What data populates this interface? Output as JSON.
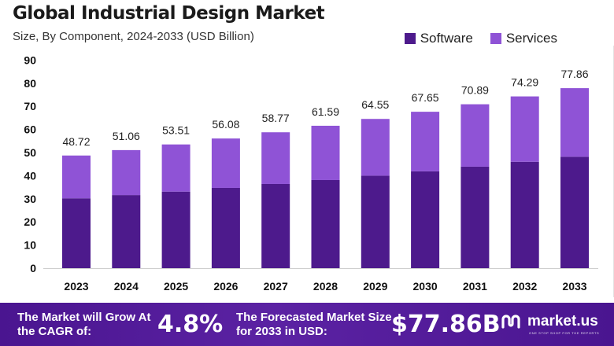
{
  "header": {
    "title": "Global Industrial Design Market",
    "subtitle": "Size, By Component, 2024-2033 (USD Billion)"
  },
  "legend": [
    {
      "label": "Software",
      "color": "#4d1a8c"
    },
    {
      "label": "Services",
      "color": "#8f53d6"
    }
  ],
  "chart_data": {
    "type": "bar",
    "stacked": true,
    "categories": [
      "2023",
      "2024",
      "2025",
      "2026",
      "2027",
      "2028",
      "2029",
      "2030",
      "2031",
      "2032",
      "2033"
    ],
    "series": [
      {
        "name": "Software",
        "color": "#4d1a8c",
        "values": [
          30.2,
          31.6,
          33.1,
          34.7,
          36.4,
          38.1,
          40.0,
          41.9,
          43.9,
          46.0,
          48.2
        ]
      },
      {
        "name": "Services",
        "color": "#8f53d6",
        "values": [
          18.52,
          19.46,
          20.41,
          21.38,
          22.37,
          23.49,
          24.55,
          25.75,
          26.99,
          28.29,
          29.66
        ]
      }
    ],
    "totals": [
      "48.72",
      "51.06",
      "53.51",
      "56.08",
      "58.77",
      "61.59",
      "64.55",
      "67.65",
      "70.89",
      "74.29",
      "77.86"
    ],
    "yticks": [
      0,
      10,
      20,
      30,
      40,
      50,
      60,
      70,
      80,
      90
    ],
    "ylim": [
      0,
      90
    ],
    "grid": false,
    "legend_position": "top-right"
  },
  "footer": {
    "cagr_label": "The Market will Grow At the CAGR of:",
    "cagr_value": "4.8%",
    "size_label": "The Forecasted Market Size for 2033 in USD:",
    "size_value": "$77.86B",
    "brand": "market.us",
    "brand_tagline": "ONE STOP SHOP FOR THE REPORTS"
  }
}
